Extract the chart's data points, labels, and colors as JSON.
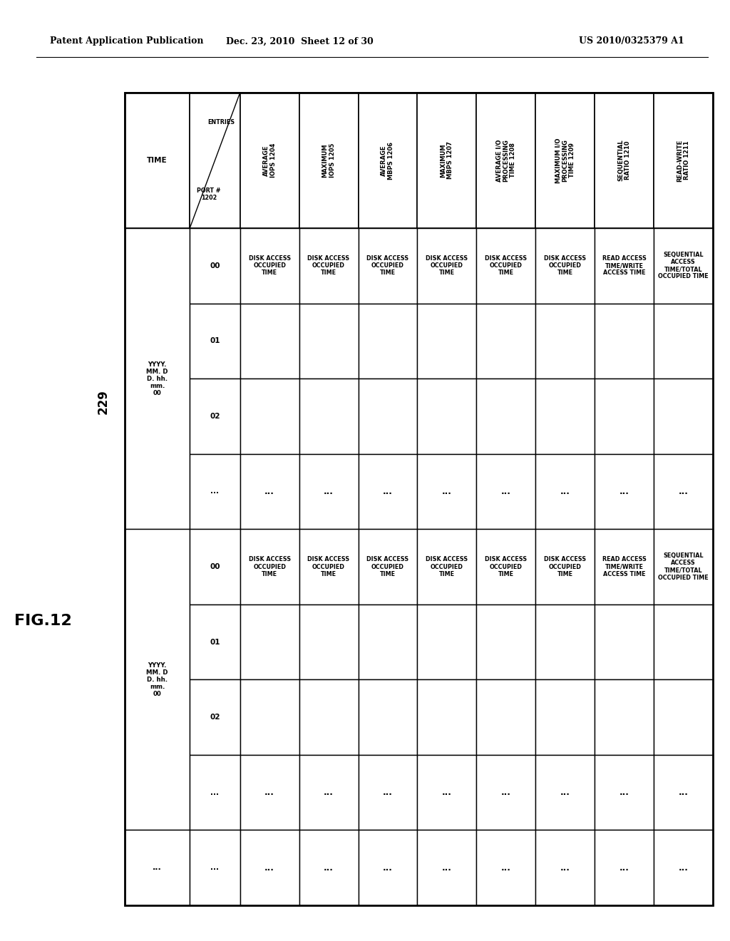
{
  "title_left": "Patent Application Publication",
  "title_center": "Dec. 23, 2010  Sheet 12 of 30",
  "title_right": "US 2010/0325379 A1",
  "fig_label": "FIG.12",
  "fig_number": "229",
  "background_color": "#ffffff",
  "col_headers": [
    "TIME",
    "ENTRIES",
    "AVERAGE\nIOPS 1204",
    "MAXIMUM\nIOPS 1205",
    "AVERAGE\nMBPS 1206",
    "MAXIMUM\nMBPS 1207",
    "AVERAGE I/O\nPROCESSING\nTIME 1208",
    "MAXIMUM I/O\nPROCESSING\nTIME 1209",
    "SEQUENTIAL\nRATIO 1210",
    "READ-WRITE\nRATIO 1211"
  ],
  "port_label": "PORT #\n1202",
  "row_groups": [
    {
      "time": "YYYY.\nMM. D\nD. hh.\nmm.\n00",
      "rows": [
        {
          "port": "00",
          "avg_iops": "DISK ACCESS\nOCCUPIED\nTIME",
          "max_iops": "DISK ACCESS\nOCCUPIED\nTIME",
          "avg_mbps": "DISK ACCESS\nOCCUPIED\nTIME",
          "max_mbps": "DISK ACCESS\nOCCUPIED\nTIME",
          "avg_io": "DISK ACCESS\nOCCUPIED\nTIME",
          "max_io": "DISK ACCESS\nOCCUPIED\nTIME",
          "seq_ratio": "READ ACCESS\nTIME/WRITE\nACCESS TIME",
          "rw_ratio": "SEQUENTIAL\nACCESS\nTIME/TOTAL\nOCCUPIED TIME"
        },
        {
          "port": "01",
          "avg_iops": "",
          "max_iops": "",
          "avg_mbps": "",
          "max_mbps": "",
          "avg_io": "",
          "max_io": "",
          "seq_ratio": "",
          "rw_ratio": ""
        },
        {
          "port": "02",
          "avg_iops": "",
          "max_iops": "",
          "avg_mbps": "",
          "max_mbps": "",
          "avg_io": "",
          "max_io": "",
          "seq_ratio": "",
          "rw_ratio": ""
        },
        {
          "port": "...",
          "avg_iops": "...",
          "max_iops": "...",
          "avg_mbps": "...",
          "max_mbps": "...",
          "avg_io": "...",
          "max_io": "...",
          "seq_ratio": "...",
          "rw_ratio": "..."
        }
      ]
    },
    {
      "time": "YYYY.\nMM. D\nD. hh.\nmm.\n00",
      "rows": [
        {
          "port": "00",
          "avg_iops": "DISK ACCESS\nOCCUPIED\nTIME",
          "max_iops": "DISK ACCESS\nOCCUPIED\nTIME",
          "avg_mbps": "DISK ACCESS\nOCCUPIED\nTIME",
          "max_mbps": "DISK ACCESS\nOCCUPIED\nTIME",
          "avg_io": "DISK ACCESS\nOCCUPIED\nTIME",
          "max_io": "DISK ACCESS\nOCCUPIED\nTIME",
          "seq_ratio": "READ ACCESS\nTIME/WRITE\nACCESS TIME",
          "rw_ratio": "SEQUENTIAL\nACCESS\nTIME/TOTAL\nOCCUPIED TIME"
        },
        {
          "port": "01",
          "avg_iops": "",
          "max_iops": "",
          "avg_mbps": "",
          "max_mbps": "",
          "avg_io": "",
          "max_io": "",
          "seq_ratio": "",
          "rw_ratio": ""
        },
        {
          "port": "02",
          "avg_iops": "",
          "max_iops": "",
          "avg_mbps": "",
          "max_mbps": "",
          "avg_io": "",
          "max_io": "",
          "seq_ratio": "",
          "rw_ratio": ""
        },
        {
          "port": "...",
          "avg_iops": "...",
          "max_iops": "...",
          "avg_mbps": "...",
          "max_mbps": "...",
          "avg_io": "...",
          "max_io": "...",
          "seq_ratio": "...",
          "rw_ratio": "..."
        }
      ]
    },
    {
      "time": "...",
      "rows": [
        {
          "port": "...",
          "avg_iops": "...",
          "max_iops": "...",
          "avg_mbps": "...",
          "max_mbps": "...",
          "avg_io": "...",
          "max_io": "...",
          "seq_ratio": "...",
          "rw_ratio": "..."
        }
      ]
    }
  ]
}
